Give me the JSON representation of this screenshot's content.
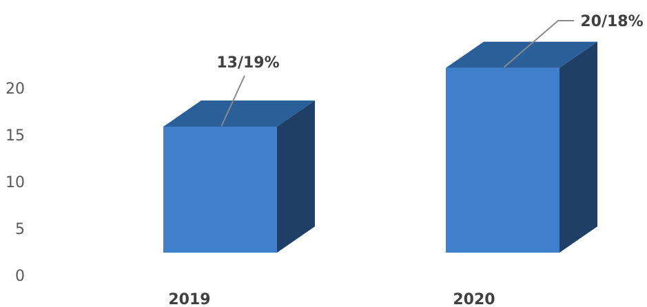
{
  "chart_data": {
    "type": "bar",
    "style": "3d-column",
    "categories": [
      "2019",
      "2020"
    ],
    "values": [
      15,
      22
    ],
    "data_labels": [
      "13/19%",
      "20/18%"
    ],
    "yticks": [
      "0",
      "5",
      "10",
      "15",
      "20"
    ],
    "ylim": [
      0,
      25
    ],
    "grid": false,
    "legend": "none",
    "colors": {
      "front": "#3f7fcc",
      "top": "#2b5f9a",
      "side": "#1f3f66",
      "leader": "#8a8a8a",
      "text": "#404040",
      "tick": "#5a5a5a"
    }
  }
}
